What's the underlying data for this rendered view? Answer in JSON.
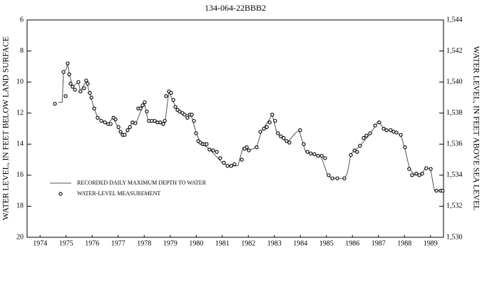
{
  "chart_data": {
    "type": "line",
    "title": "134-064-22BBB2",
    "y_label": "WATER LEVEL, IN FEET BELOW LAND SURFACE",
    "y2_label": "WATER LEVEL, IN FEET ABOVE SEA LEVEL",
    "xlim": [
      1974,
      1990
    ],
    "xticks": [
      {
        "value": 1974.5,
        "label": "1974"
      },
      {
        "value": 1975.5,
        "label": "1975"
      },
      {
        "value": 1976.5,
        "label": "1976"
      },
      {
        "value": 1977.5,
        "label": "1977"
      },
      {
        "value": 1978.5,
        "label": "1978"
      },
      {
        "value": 1979.5,
        "label": "1979"
      },
      {
        "value": 1980.5,
        "label": "1980"
      },
      {
        "value": 1981.5,
        "label": "1981"
      },
      {
        "value": 1982.5,
        "label": "1982"
      },
      {
        "value": 1983.5,
        "label": "1983"
      },
      {
        "value": 1984.5,
        "label": "1984"
      },
      {
        "value": 1985.5,
        "label": "1985"
      },
      {
        "value": 1986.5,
        "label": "1986"
      },
      {
        "value": 1987.5,
        "label": "1987"
      },
      {
        "value": 1988.5,
        "label": "1988"
      },
      {
        "value": 1989.5,
        "label": "1989"
      }
    ],
    "ylim": [
      20,
      6
    ],
    "yticks": [
      6,
      8,
      10,
      12,
      14,
      16,
      18,
      20
    ],
    "y2lim": [
      1530,
      1544
    ],
    "y2ticks": [
      {
        "value": 1544,
        "label": "1,544"
      },
      {
        "value": 1542,
        "label": "1,542"
      },
      {
        "value": 1540,
        "label": "1,540"
      },
      {
        "value": 1538,
        "label": "1,538"
      },
      {
        "value": 1536,
        "label": "1,536"
      },
      {
        "value": 1534,
        "label": "1,534"
      },
      {
        "value": 1532,
        "label": "1,532"
      },
      {
        "value": 1530,
        "label": "1,530"
      }
    ],
    "legend": "left",
    "series": [
      {
        "name": "RECORDED DAILY MAXIMUM DEPTH TO WATER",
        "type": "line",
        "color": "#555555",
        "x": [
          1975.2,
          1975.35,
          1975.4,
          1975.5,
          1975.56,
          1975.62,
          1975.75,
          1975.97,
          1976.05,
          1976.27,
          1976.4,
          1976.58,
          1976.71,
          1977.1,
          1977.3,
          1977.59,
          1977.75,
          1978.05,
          1978.2,
          1978.5,
          1978.65,
          1979.2,
          1979.3,
          1979.45,
          1979.7,
          1980.05,
          1980.3,
          1980.5,
          1980.66,
          1981.0,
          1981.5,
          1981.7,
          1982.1,
          1982.3,
          1982.52,
          1982.82,
          1983.0,
          1983.42,
          1983.6,
          1984.0,
          1984.3,
          1984.45,
          1984.7,
          1985.3,
          1985.55,
          1985.7,
          1986.2,
          1986.3,
          1986.45,
          1986.8,
          1987.2,
          1987.5,
          1987.7,
          1988.36,
          1988.5,
          1988.7,
          1988.9,
          1989.2,
          1989.3,
          1989.5,
          1989.65,
          1990.0
        ],
        "values": [
          11.3,
          11.3,
          9.3,
          9.2,
          8.8,
          9.5,
          10.3,
          10.0,
          10.6,
          9.9,
          10.7,
          11.7,
          12.3,
          12.7,
          12.3,
          13.2,
          13.4,
          12.6,
          12.6,
          11.3,
          12.5,
          12.7,
          12.6,
          10.6,
          11.6,
          12.1,
          12.1,
          13.3,
          13.9,
          14.3,
          15.2,
          15.4,
          15.4,
          14.2,
          14.4,
          14.2,
          13.2,
          12.1,
          13.3,
          13.9,
          13.3,
          13.1,
          14.5,
          14.8,
          16.0,
          16.2,
          16.2,
          15.9,
          14.6,
          14.1,
          13.3,
          12.5,
          13.0,
          13.4,
          14.2,
          15.6,
          16.0,
          15.9,
          15.5,
          15.6,
          17.0,
          17.0
        ]
      },
      {
        "name": "WATER-LEVEL MEASUREMENT",
        "type": "scatter",
        "color": "#000000",
        "x": [
          1975.07,
          1975.4,
          1975.48,
          1975.56,
          1975.62,
          1975.67,
          1975.75,
          1975.84,
          1975.97,
          1976.05,
          1976.19,
          1976.27,
          1976.33,
          1976.41,
          1976.47,
          1976.58,
          1976.71,
          1976.85,
          1976.99,
          1977.12,
          1977.21,
          1977.32,
          1977.4,
          1977.51,
          1977.59,
          1977.67,
          1977.75,
          1977.86,
          1977.95,
          1978.05,
          1978.16,
          1978.27,
          1978.36,
          1978.44,
          1978.52,
          1978.6,
          1978.68,
          1978.79,
          1978.9,
          1979.01,
          1979.12,
          1979.23,
          1979.29,
          1979.34,
          1979.45,
          1979.53,
          1979.62,
          1979.7,
          1979.78,
          1979.86,
          1979.97,
          1980.05,
          1980.16,
          1980.25,
          1980.33,
          1980.41,
          1980.49,
          1980.58,
          1980.66,
          1980.74,
          1980.82,
          1980.9,
          1981.01,
          1981.15,
          1981.29,
          1981.42,
          1981.56,
          1981.7,
          1981.84,
          1981.97,
          1982.25,
          1982.36,
          1982.44,
          1982.52,
          1982.82,
          1982.96,
          1983.1,
          1983.21,
          1983.32,
          1983.42,
          1983.53,
          1983.64,
          1983.75,
          1983.86,
          1983.97,
          1984.08,
          1984.49,
          1984.63,
          1984.77,
          1984.9,
          1985.04,
          1985.18,
          1985.32,
          1985.45,
          1985.59,
          1985.73,
          1985.92,
          1986.19,
          1986.44,
          1986.58,
          1986.68,
          1986.79,
          1986.93,
          1987.04,
          1987.18,
          1987.37,
          1987.53,
          1987.7,
          1987.81,
          1987.97,
          1988.08,
          1988.19,
          1988.36,
          1988.52,
          1988.68,
          1988.79,
          1988.96,
          1989.07,
          1989.18,
          1989.34,
          1989.51,
          1989.73,
          1989.89,
          1989.97
        ],
        "values": [
          11.4,
          9.35,
          10.9,
          8.8,
          9.5,
          10.1,
          10.3,
          10.5,
          10.0,
          10.6,
          10.4,
          9.9,
          10.1,
          10.7,
          11.0,
          11.7,
          12.3,
          12.5,
          12.6,
          12.7,
          12.7,
          12.3,
          12.4,
          12.9,
          13.2,
          13.4,
          13.4,
          13.1,
          12.9,
          12.6,
          12.65,
          11.7,
          11.7,
          11.5,
          11.3,
          11.9,
          12.5,
          12.5,
          12.5,
          12.6,
          12.6,
          12.7,
          12.5,
          10.9,
          10.6,
          10.7,
          11.15,
          11.6,
          11.8,
          11.9,
          12.0,
          12.1,
          12.3,
          12.1,
          12.1,
          12.5,
          13.3,
          13.8,
          13.9,
          14.0,
          14.0,
          14.0,
          14.35,
          14.4,
          14.5,
          14.9,
          15.2,
          15.4,
          15.4,
          15.3,
          15.0,
          14.3,
          14.2,
          14.4,
          14.2,
          13.2,
          13.0,
          12.9,
          12.6,
          12.1,
          12.5,
          13.3,
          13.5,
          13.6,
          13.8,
          13.9,
          13.1,
          14.0,
          14.5,
          14.6,
          14.65,
          14.75,
          14.75,
          14.9,
          16.0,
          16.2,
          16.2,
          16.2,
          14.7,
          14.4,
          14.5,
          14.1,
          13.6,
          13.45,
          13.3,
          12.8,
          12.6,
          13.0,
          13.1,
          13.1,
          13.2,
          13.25,
          13.4,
          14.2,
          15.6,
          16.0,
          15.9,
          16.0,
          15.9,
          15.55,
          15.6,
          17.0,
          17.0,
          17.0
        ]
      }
    ]
  }
}
